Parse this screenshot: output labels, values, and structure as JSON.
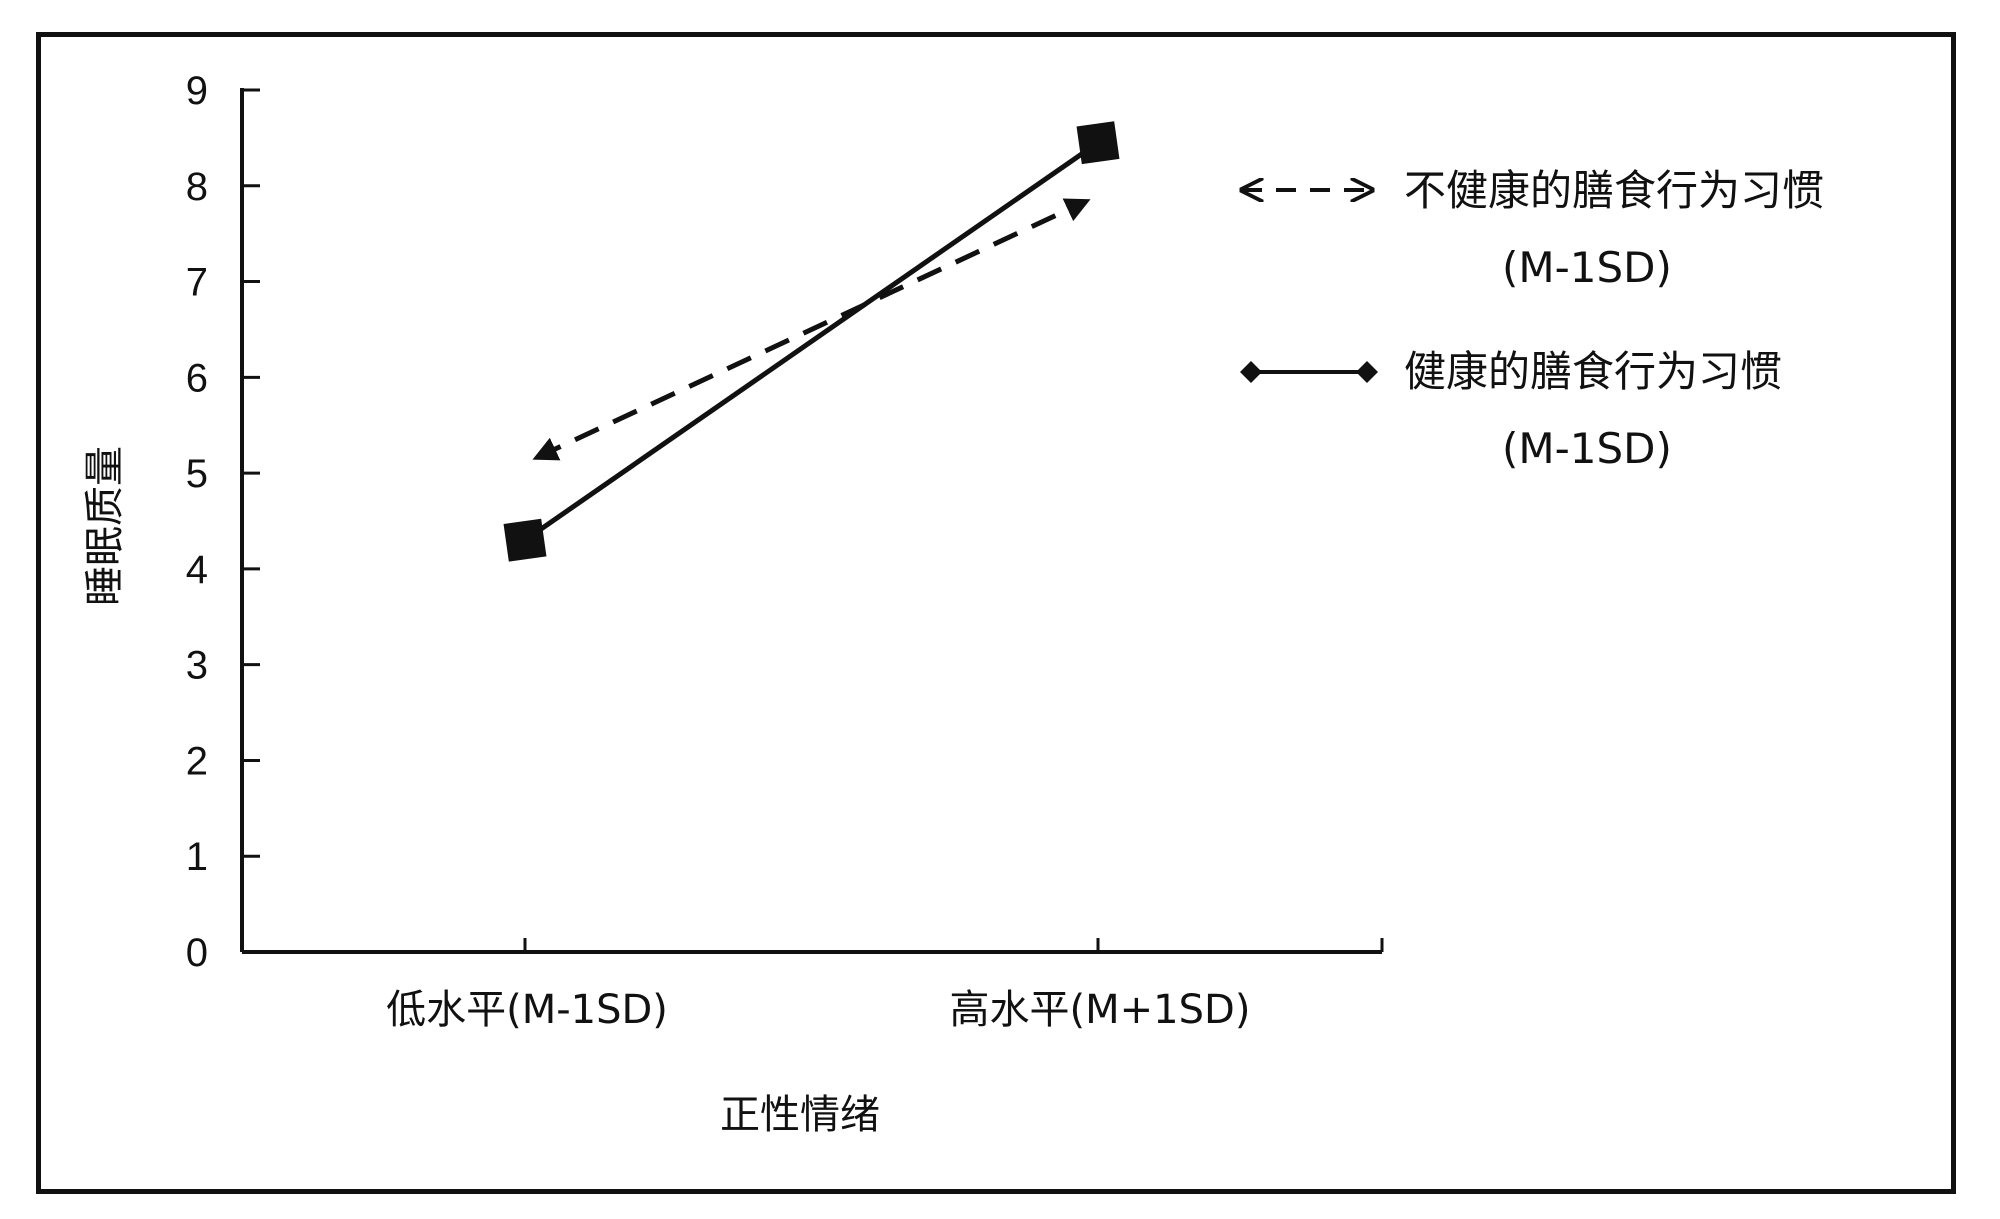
{
  "chart_data": {
    "type": "line",
    "title": "",
    "xlabel": "正性情绪",
    "ylabel": "睡眠质量",
    "categories": [
      "低水平(M-1SD)",
      "高水平(M+1SD)"
    ],
    "ylim": [
      0,
      9
    ],
    "yticks": [
      0,
      1,
      2,
      3,
      4,
      5,
      6,
      7,
      8,
      9
    ],
    "grid": false,
    "legend_position": "right",
    "series": [
      {
        "name": "不健康的膳食行为习惯",
        "name_line2": "(M-1SD)",
        "style": "dashed",
        "marker": "arrow",
        "values": [
          5.1,
          7.9
        ]
      },
      {
        "name": "健康的膳食行为习惯",
        "name_line2": "(M-1SD)",
        "style": "solid",
        "marker": "square",
        "values": [
          4.3,
          8.45
        ]
      }
    ]
  }
}
